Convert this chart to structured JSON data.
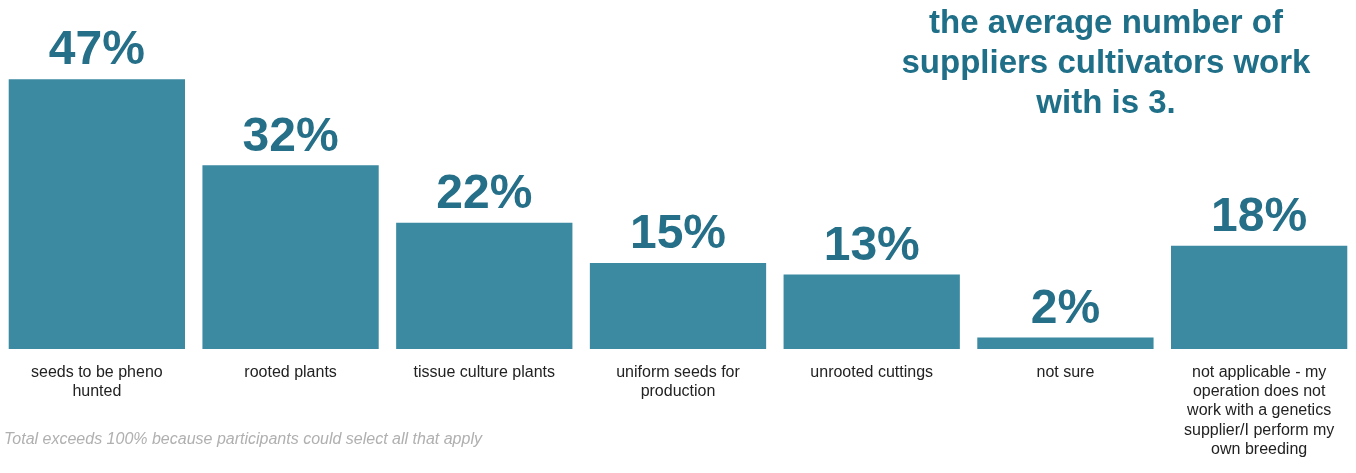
{
  "chart_data": {
    "type": "bar",
    "title": "the average number of suppliers cultivators work with is 3.",
    "categories": [
      "seeds to be pheno hunted",
      "rooted plants",
      "tissue culture plants",
      "uniform seeds for production",
      "unrooted cuttings",
      "not sure",
      "not applicable - my operation does not work with a genetics supplier/I perform my own breeding"
    ],
    "values": [
      47,
      32,
      22,
      15,
      13,
      2,
      18
    ],
    "value_labels": [
      "47%",
      "32%",
      "22%",
      "15%",
      "13%",
      "2%",
      "18%"
    ],
    "color": "#3b8aa2",
    "annotations": [
      "Total exceeds 100% because participants could select all that apply"
    ],
    "legend": false,
    "grid": false
  }
}
